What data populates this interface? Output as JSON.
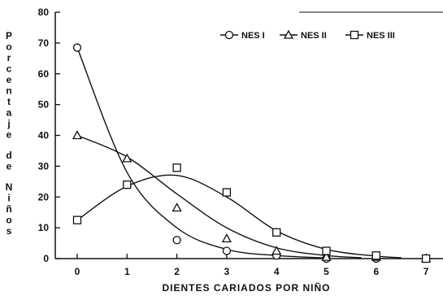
{
  "chart_data": {
    "type": "scatter",
    "title": "",
    "xlabel": "DIENTES   CARIADOS   POR   NIÑO",
    "ylabel": "Porcentaje de Niños",
    "xlim": [
      -0.5,
      7.5
    ],
    "ylim": [
      0,
      80
    ],
    "x_ticks": [
      0,
      1,
      2,
      3,
      4,
      5,
      6,
      7
    ],
    "y_ticks": [
      0,
      10,
      20,
      30,
      40,
      50,
      60,
      70,
      80
    ],
    "grid": false,
    "legend_position": "top-right",
    "series": [
      {
        "name": "NES I",
        "marker": "circle",
        "x": [
          0,
          1,
          2,
          3,
          4,
          5,
          6,
          7
        ],
        "values": [
          68.5,
          24,
          6,
          2.5,
          1,
          0,
          0,
          0
        ],
        "curve": [
          [
            0,
            68.5
          ],
          [
            1,
            28
          ],
          [
            2,
            10
          ],
          [
            3,
            3
          ],
          [
            4,
            1
          ],
          [
            5,
            0.2
          ]
        ]
      },
      {
        "name": "NES II",
        "marker": "triangle",
        "x": [
          0,
          1,
          2,
          3,
          4,
          5,
          6,
          7
        ],
        "values": [
          40,
          32.5,
          16.5,
          6.5,
          2.5,
          0.5,
          0.5,
          0
        ],
        "curve": [
          [
            0,
            40
          ],
          [
            1,
            33
          ],
          [
            2,
            21
          ],
          [
            3,
            10
          ],
          [
            4,
            3.5
          ],
          [
            5,
            1
          ],
          [
            5.7,
            0.3
          ]
        ]
      },
      {
        "name": "NES III",
        "marker": "square",
        "x": [
          0,
          1,
          2,
          3,
          4,
          5,
          6,
          7
        ],
        "values": [
          12.5,
          24,
          29.5,
          21.5,
          8.5,
          2.5,
          1,
          0
        ],
        "curve": [
          [
            0,
            12.5
          ],
          [
            1,
            23.5
          ],
          [
            2,
            27
          ],
          [
            3,
            20
          ],
          [
            4,
            9
          ],
          [
            5,
            3
          ],
          [
            6,
            0.8
          ],
          [
            6.5,
            0.3
          ]
        ]
      }
    ]
  }
}
